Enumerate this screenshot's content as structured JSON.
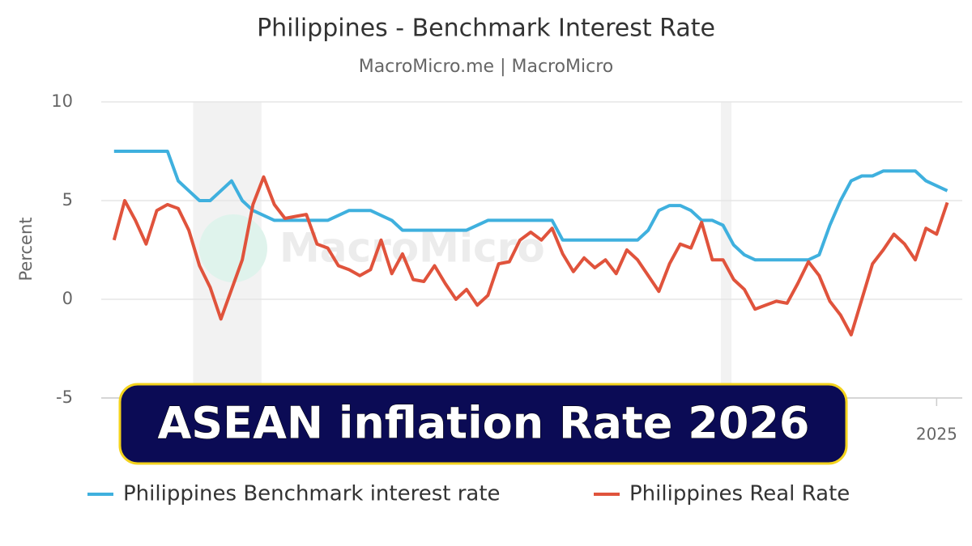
{
  "chart_data": {
    "type": "line",
    "title": "Philippines - Benchmark Interest Rate",
    "subtitle": "MacroMicro.me | MacroMicro",
    "watermark": "MacroMicro",
    "ylabel": "Percent",
    "x": [
      2005.75,
      2006.0,
      2006.25,
      2006.5,
      2006.75,
      2007.0,
      2007.25,
      2007.5,
      2007.75,
      2008.0,
      2008.25,
      2008.5,
      2008.75,
      2009.0,
      2009.25,
      2009.5,
      2009.75,
      2010.0,
      2010.25,
      2010.5,
      2010.75,
      2011.0,
      2011.25,
      2011.5,
      2011.75,
      2012.0,
      2012.25,
      2012.5,
      2012.75,
      2013.0,
      2013.25,
      2013.5,
      2013.75,
      2014.0,
      2014.25,
      2014.5,
      2014.75,
      2015.0,
      2015.25,
      2015.5,
      2015.75,
      2016.0,
      2016.25,
      2016.5,
      2016.75,
      2017.0,
      2017.25,
      2017.5,
      2017.75,
      2018.0,
      2018.25,
      2018.5,
      2018.75,
      2019.0,
      2019.25,
      2019.5,
      2019.75,
      2020.0,
      2020.25,
      2020.5,
      2020.75,
      2021.0,
      2021.25,
      2021.5,
      2021.75,
      2022.0,
      2022.25,
      2022.5,
      2022.75,
      2023.0,
      2023.25,
      2023.5,
      2023.75,
      2024.0,
      2024.25,
      2024.5,
      2024.75,
      2025.0,
      2025.25
    ],
    "series": [
      {
        "name": "Philippines Benchmark interest rate",
        "color": "#3fb0de",
        "values": [
          7.5,
          7.5,
          7.5,
          7.5,
          7.5,
          7.5,
          6,
          5.5,
          5,
          5,
          5.5,
          6,
          5,
          4.5,
          4.25,
          4,
          4,
          4,
          4,
          4,
          4,
          4.25,
          4.5,
          4.5,
          4.5,
          4.25,
          4,
          3.5,
          3.5,
          3.5,
          3.5,
          3.5,
          3.5,
          3.5,
          3.75,
          4,
          4,
          4,
          4,
          4,
          4,
          4,
          3,
          3,
          3,
          3,
          3,
          3,
          3,
          3,
          3.5,
          4.5,
          4.75,
          4.75,
          4.5,
          4,
          4,
          3.75,
          2.75,
          2.25,
          2,
          2,
          2,
          2,
          2,
          2,
          2.25,
          3.75,
          5,
          6,
          6.25,
          6.25,
          6.5,
          6.5,
          6.5,
          6.5,
          6,
          5.75,
          5.5
        ]
      },
      {
        "name": "Philippines Real Rate",
        "color": "#e0533c",
        "values": [
          3.0,
          5.0,
          4.0,
          2.8,
          4.5,
          4.8,
          4.6,
          3.5,
          1.7,
          0.6,
          -1.0,
          0.5,
          2.0,
          4.8,
          6.2,
          4.8,
          4.1,
          4.2,
          4.3,
          2.8,
          2.6,
          1.7,
          1.5,
          1.2,
          1.5,
          3.0,
          1.3,
          2.3,
          1.0,
          0.9,
          1.7,
          0.8,
          0.0,
          0.5,
          -0.3,
          0.2,
          1.8,
          1.9,
          3.0,
          3.4,
          3.0,
          3.6,
          2.3,
          1.4,
          2.1,
          1.6,
          2.0,
          1.3,
          2.5,
          2.0,
          1.2,
          0.4,
          1.8,
          2.8,
          2.6,
          3.9,
          2.0,
          2.0,
          1.0,
          0.5,
          -0.5,
          -0.3,
          -0.1,
          -0.2,
          0.8,
          1.9,
          1.2,
          -0.1,
          -0.8,
          -1.8,
          0.0,
          1.8,
          2.5,
          3.3,
          2.8,
          2.0,
          3.6,
          3.3,
          4.9
        ]
      }
    ],
    "xlim": [
      2005.45,
      2025.6
    ],
    "xticks": [
      2025
    ],
    "ylim": [
      -5,
      10
    ],
    "yticks": [
      -5,
      0,
      5,
      10
    ],
    "shaded_ranges": [
      [
        2007.6,
        2009.2
      ],
      [
        2019.95,
        2020.2
      ]
    ],
    "grid": true,
    "legend": "bottom"
  },
  "banner": {
    "text": "ASEAN inflation Rate 2026"
  }
}
